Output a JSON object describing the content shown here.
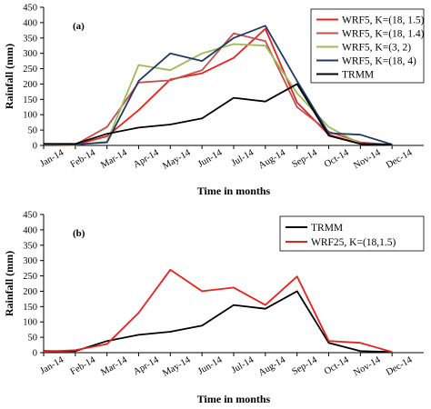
{
  "chart_data": [
    {
      "type": "line",
      "panel_label": "(a)",
      "categories": [
        "Jan-14",
        "Feb-14",
        "Mar-14",
        "Apr-14",
        "May-14",
        "Jun-14",
        "Jul-14",
        "Aug-14",
        "Sep-14",
        "Oct-14",
        "Nov-14",
        "Dec-14"
      ],
      "xlabel": "Time in months",
      "ylabel": "Rainfall (mm)",
      "ylim": [
        0,
        450
      ],
      "yticks": [
        0,
        50,
        100,
        150,
        200,
        250,
        300,
        350,
        400,
        450
      ],
      "grid": false,
      "legend_position": "top-right",
      "series": [
        {
          "name": "WRF5, K=(18, 1.5)",
          "color": "#e8211d",
          "values": [
            3,
            2,
            30,
            115,
            215,
            235,
            285,
            380,
            140,
            35,
            5,
            2
          ]
        },
        {
          "name": "WRF5, K=(18, 1.4)",
          "color": "#c0504d",
          "values": [
            3,
            2,
            60,
            205,
            212,
            245,
            365,
            340,
            125,
            45,
            10,
            2
          ]
        },
        {
          "name": "WRF5, K=(3, 2)",
          "color": "#9bbb59",
          "values": [
            3,
            2,
            12,
            262,
            245,
            300,
            330,
            325,
            170,
            60,
            5,
            2
          ]
        },
        {
          "name": "WRF5, K=(18, 4)",
          "color": "#1f3864",
          "values": [
            4,
            3,
            10,
            210,
            300,
            275,
            350,
            390,
            210,
            40,
            35,
            3
          ]
        },
        {
          "name": "TRMM",
          "color": "#000000",
          "values": [
            5,
            5,
            38,
            58,
            68,
            88,
            155,
            143,
            200,
            32,
            5,
            2
          ]
        }
      ]
    },
    {
      "type": "line",
      "panel_label": "(b)",
      "categories": [
        "Jan-14",
        "Feb-14",
        "Mar-14",
        "Apr-14",
        "May-14",
        "Jun-14",
        "Jul-14",
        "Aug-14",
        "Sep-14",
        "Oct-14",
        "Nov-14",
        "Dec-14"
      ],
      "xlabel": "Time in months",
      "ylabel": "Rainfall (mm)",
      "ylim": [
        0,
        450
      ],
      "yticks": [
        0,
        50,
        100,
        150,
        200,
        250,
        300,
        350,
        400,
        450
      ],
      "grid": false,
      "legend_position": "top-right",
      "series": [
        {
          "name": "TRMM",
          "color": "#000000",
          "values": [
            5,
            5,
            38,
            58,
            68,
            88,
            155,
            143,
            200,
            32,
            5,
            2
          ]
        },
        {
          "name": "WRF25, K=(18,1.5)",
          "color": "#e8211d",
          "values": [
            3,
            8,
            28,
            130,
            270,
            200,
            212,
            155,
            248,
            38,
            32,
            2
          ]
        }
      ]
    }
  ]
}
